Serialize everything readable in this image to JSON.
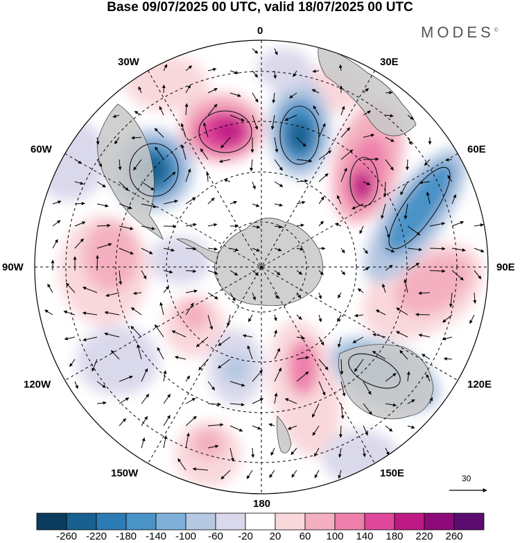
{
  "title": "Base 09/07/2025 00 UTC, valid 18/07/2025 00 UTC",
  "brand": {
    "name": "MODES",
    "mark": "©"
  },
  "longitude_labels": {
    "lon_0": "0",
    "lon_30e": "30E",
    "lon_60e": "60E",
    "lon_90e": "90E",
    "lon_120e": "120E",
    "lon_150e": "150E",
    "lon_180": "180",
    "lon_150w": "150W",
    "lon_120w": "120W",
    "lon_90w": "90W",
    "lon_60w": "60W",
    "lon_30w": "30W"
  },
  "wind_reference_vector": "30",
  "colorbar": {
    "labels": [
      "-260",
      "-220",
      "-180",
      "-140",
      "-100",
      "-60",
      "-20",
      "20",
      "60",
      "100",
      "140",
      "180",
      "220",
      "260"
    ],
    "colors": [
      "#0a3d5e",
      "#17608f",
      "#2b7cb5",
      "#4a93c7",
      "#7fb0d8",
      "#b6c8e2",
      "#dad9ec",
      "#ffffff",
      "#f9d8dc",
      "#f4b0c0",
      "#ee80ab",
      "#e0489b",
      "#bf1a83",
      "#8d0a78",
      "#5c0c6e"
    ]
  },
  "colors": {
    "land": "#c8c8c8",
    "frame": "#000000"
  }
}
